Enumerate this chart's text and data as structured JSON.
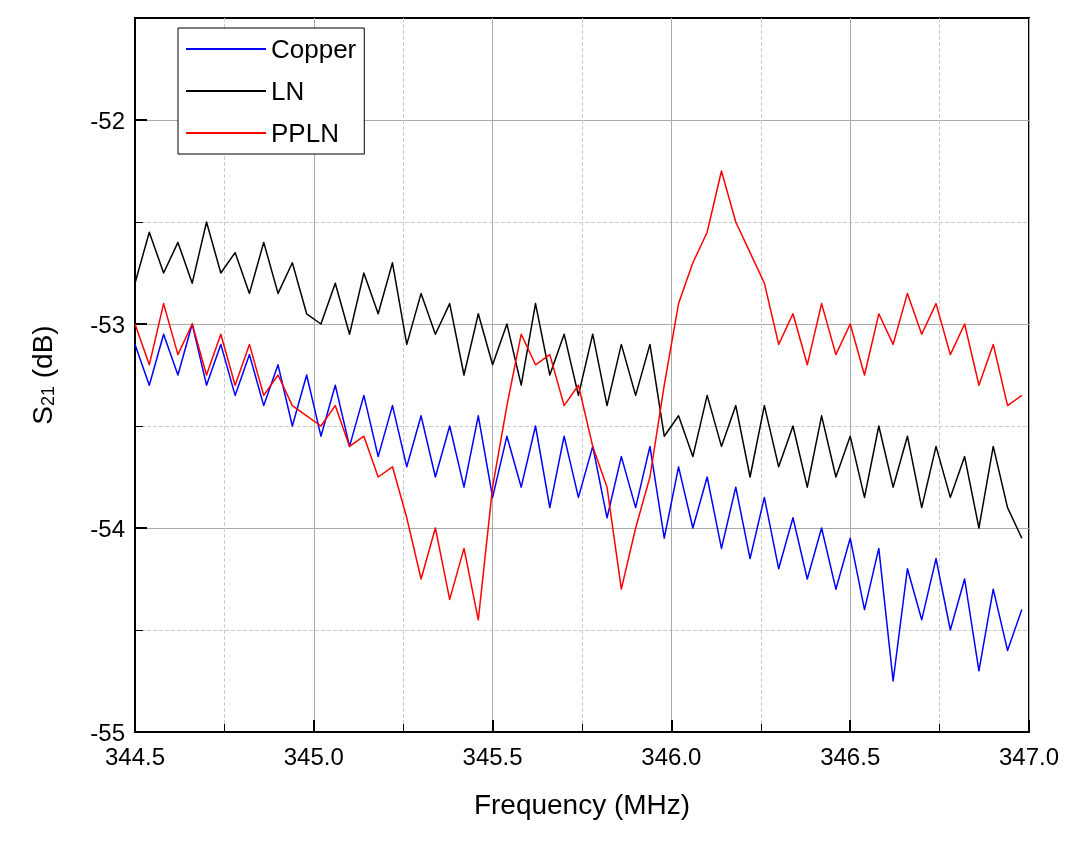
{
  "chart_data": {
    "type": "line",
    "xlabel": "Frequency (MHz)",
    "ylabel": "S$_{21}$ (dB)",
    "xlim": [
      344.5,
      347.0
    ],
    "xticks": [
      {
        "value": 344.5,
        "label": "344.5"
      },
      {
        "value": 345,
        "label": "345.0"
      },
      {
        "value": 345.5,
        "label": "345.5"
      },
      {
        "value": 346,
        "label": "346.0"
      },
      {
        "value": 346.5,
        "label": "346.5"
      },
      {
        "value": 347,
        "label": "347.0"
      }
    ],
    "ylim": [
      -55,
      -51.5
    ],
    "yticks": [
      -55,
      -54,
      -53,
      -52
    ],
    "grid": true,
    "legend": "top left",
    "marker": "none",
    "line_style": "solid",
    "x": [
      344.5,
      344.54,
      344.58,
      344.62,
      344.66,
      344.7,
      344.74,
      344.78,
      344.82,
      344.86,
      344.9,
      344.94,
      344.98,
      345.02,
      345.06,
      345.1,
      345.14,
      345.18,
      345.22,
      345.26,
      345.3,
      345.34,
      345.38,
      345.42,
      345.46,
      345.5,
      345.54,
      345.58,
      345.62,
      345.66,
      345.7,
      345.74,
      345.78,
      345.82,
      345.86,
      345.9,
      345.94,
      345.98,
      346.02,
      346.06,
      346.1,
      346.14,
      346.18,
      346.22,
      346.26,
      346.3,
      346.34,
      346.38,
      346.42,
      346.46,
      346.5,
      346.54,
      346.58,
      346.62,
      346.66,
      346.7,
      346.74,
      346.78,
      346.82,
      346.86,
      346.9,
      346.94,
      346.98
    ],
    "series": [
      {
        "name": "Copper",
        "color": "#0000ff",
        "values": [
          -53.1,
          -53.3,
          -53.05,
          -53.25,
          -53.0,
          -53.3,
          -53.1,
          -53.35,
          -53.15,
          -53.4,
          -53.2,
          -53.5,
          -53.25,
          -53.55,
          -53.3,
          -53.6,
          -53.35,
          -53.65,
          -53.4,
          -53.7,
          -53.45,
          -53.75,
          -53.5,
          -53.8,
          -53.45,
          -53.85,
          -53.55,
          -53.8,
          -53.5,
          -53.9,
          -53.55,
          -53.85,
          -53.6,
          -53.95,
          -53.65,
          -53.9,
          -53.6,
          -54.05,
          -53.7,
          -54.0,
          -53.75,
          -54.1,
          -53.8,
          -54.15,
          -53.85,
          -54.2,
          -53.95,
          -54.25,
          -54.0,
          -54.3,
          -54.05,
          -54.4,
          -54.1,
          -54.75,
          -54.2,
          -54.45,
          -54.15,
          -54.5,
          -54.25,
          -54.7,
          -54.3,
          -54.6,
          -54.4
        ]
      },
      {
        "name": "LN",
        "color": "#000000",
        "values": [
          -52.8,
          -52.55,
          -52.75,
          -52.6,
          -52.8,
          -52.5,
          -52.75,
          -52.65,
          -52.85,
          -52.6,
          -52.85,
          -52.7,
          -52.95,
          -53.0,
          -52.8,
          -53.05,
          -52.75,
          -52.95,
          -52.7,
          -53.1,
          -52.85,
          -53.05,
          -52.9,
          -53.25,
          -52.95,
          -53.2,
          -53.0,
          -53.3,
          -52.9,
          -53.25,
          -53.05,
          -53.35,
          -53.05,
          -53.4,
          -53.1,
          -53.35,
          -53.1,
          -53.55,
          -53.45,
          -53.65,
          -53.35,
          -53.6,
          -53.4,
          -53.75,
          -53.4,
          -53.7,
          -53.5,
          -53.8,
          -53.45,
          -53.75,
          -53.55,
          -53.85,
          -53.5,
          -53.8,
          -53.55,
          -53.9,
          -53.6,
          -53.85,
          -53.65,
          -54.0,
          -53.6,
          -53.9,
          -54.05
        ]
      },
      {
        "name": "PPLN",
        "color": "#ff0000",
        "values": [
          -53.0,
          -53.2,
          -52.9,
          -53.15,
          -53.0,
          -53.25,
          -53.05,
          -53.3,
          -53.1,
          -53.35,
          -53.25,
          -53.4,
          -53.45,
          -53.5,
          -53.4,
          -53.6,
          -53.55,
          -53.75,
          -53.7,
          -53.95,
          -54.25,
          -54.0,
          -54.35,
          -54.1,
          -54.45,
          -53.8,
          -53.4,
          -53.05,
          -53.2,
          -53.15,
          -53.4,
          -53.3,
          -53.6,
          -53.8,
          -54.3,
          -54.0,
          -53.75,
          -53.3,
          -52.9,
          -52.7,
          -52.55,
          -52.25,
          -52.5,
          -52.65,
          -52.8,
          -53.1,
          -52.95,
          -53.2,
          -52.9,
          -53.15,
          -53.0,
          -53.25,
          -52.95,
          -53.1,
          -52.85,
          -53.05,
          -52.9,
          -53.15,
          -53.0,
          -53.3,
          -53.1,
          -53.4,
          -53.35
        ]
      }
    ]
  }
}
